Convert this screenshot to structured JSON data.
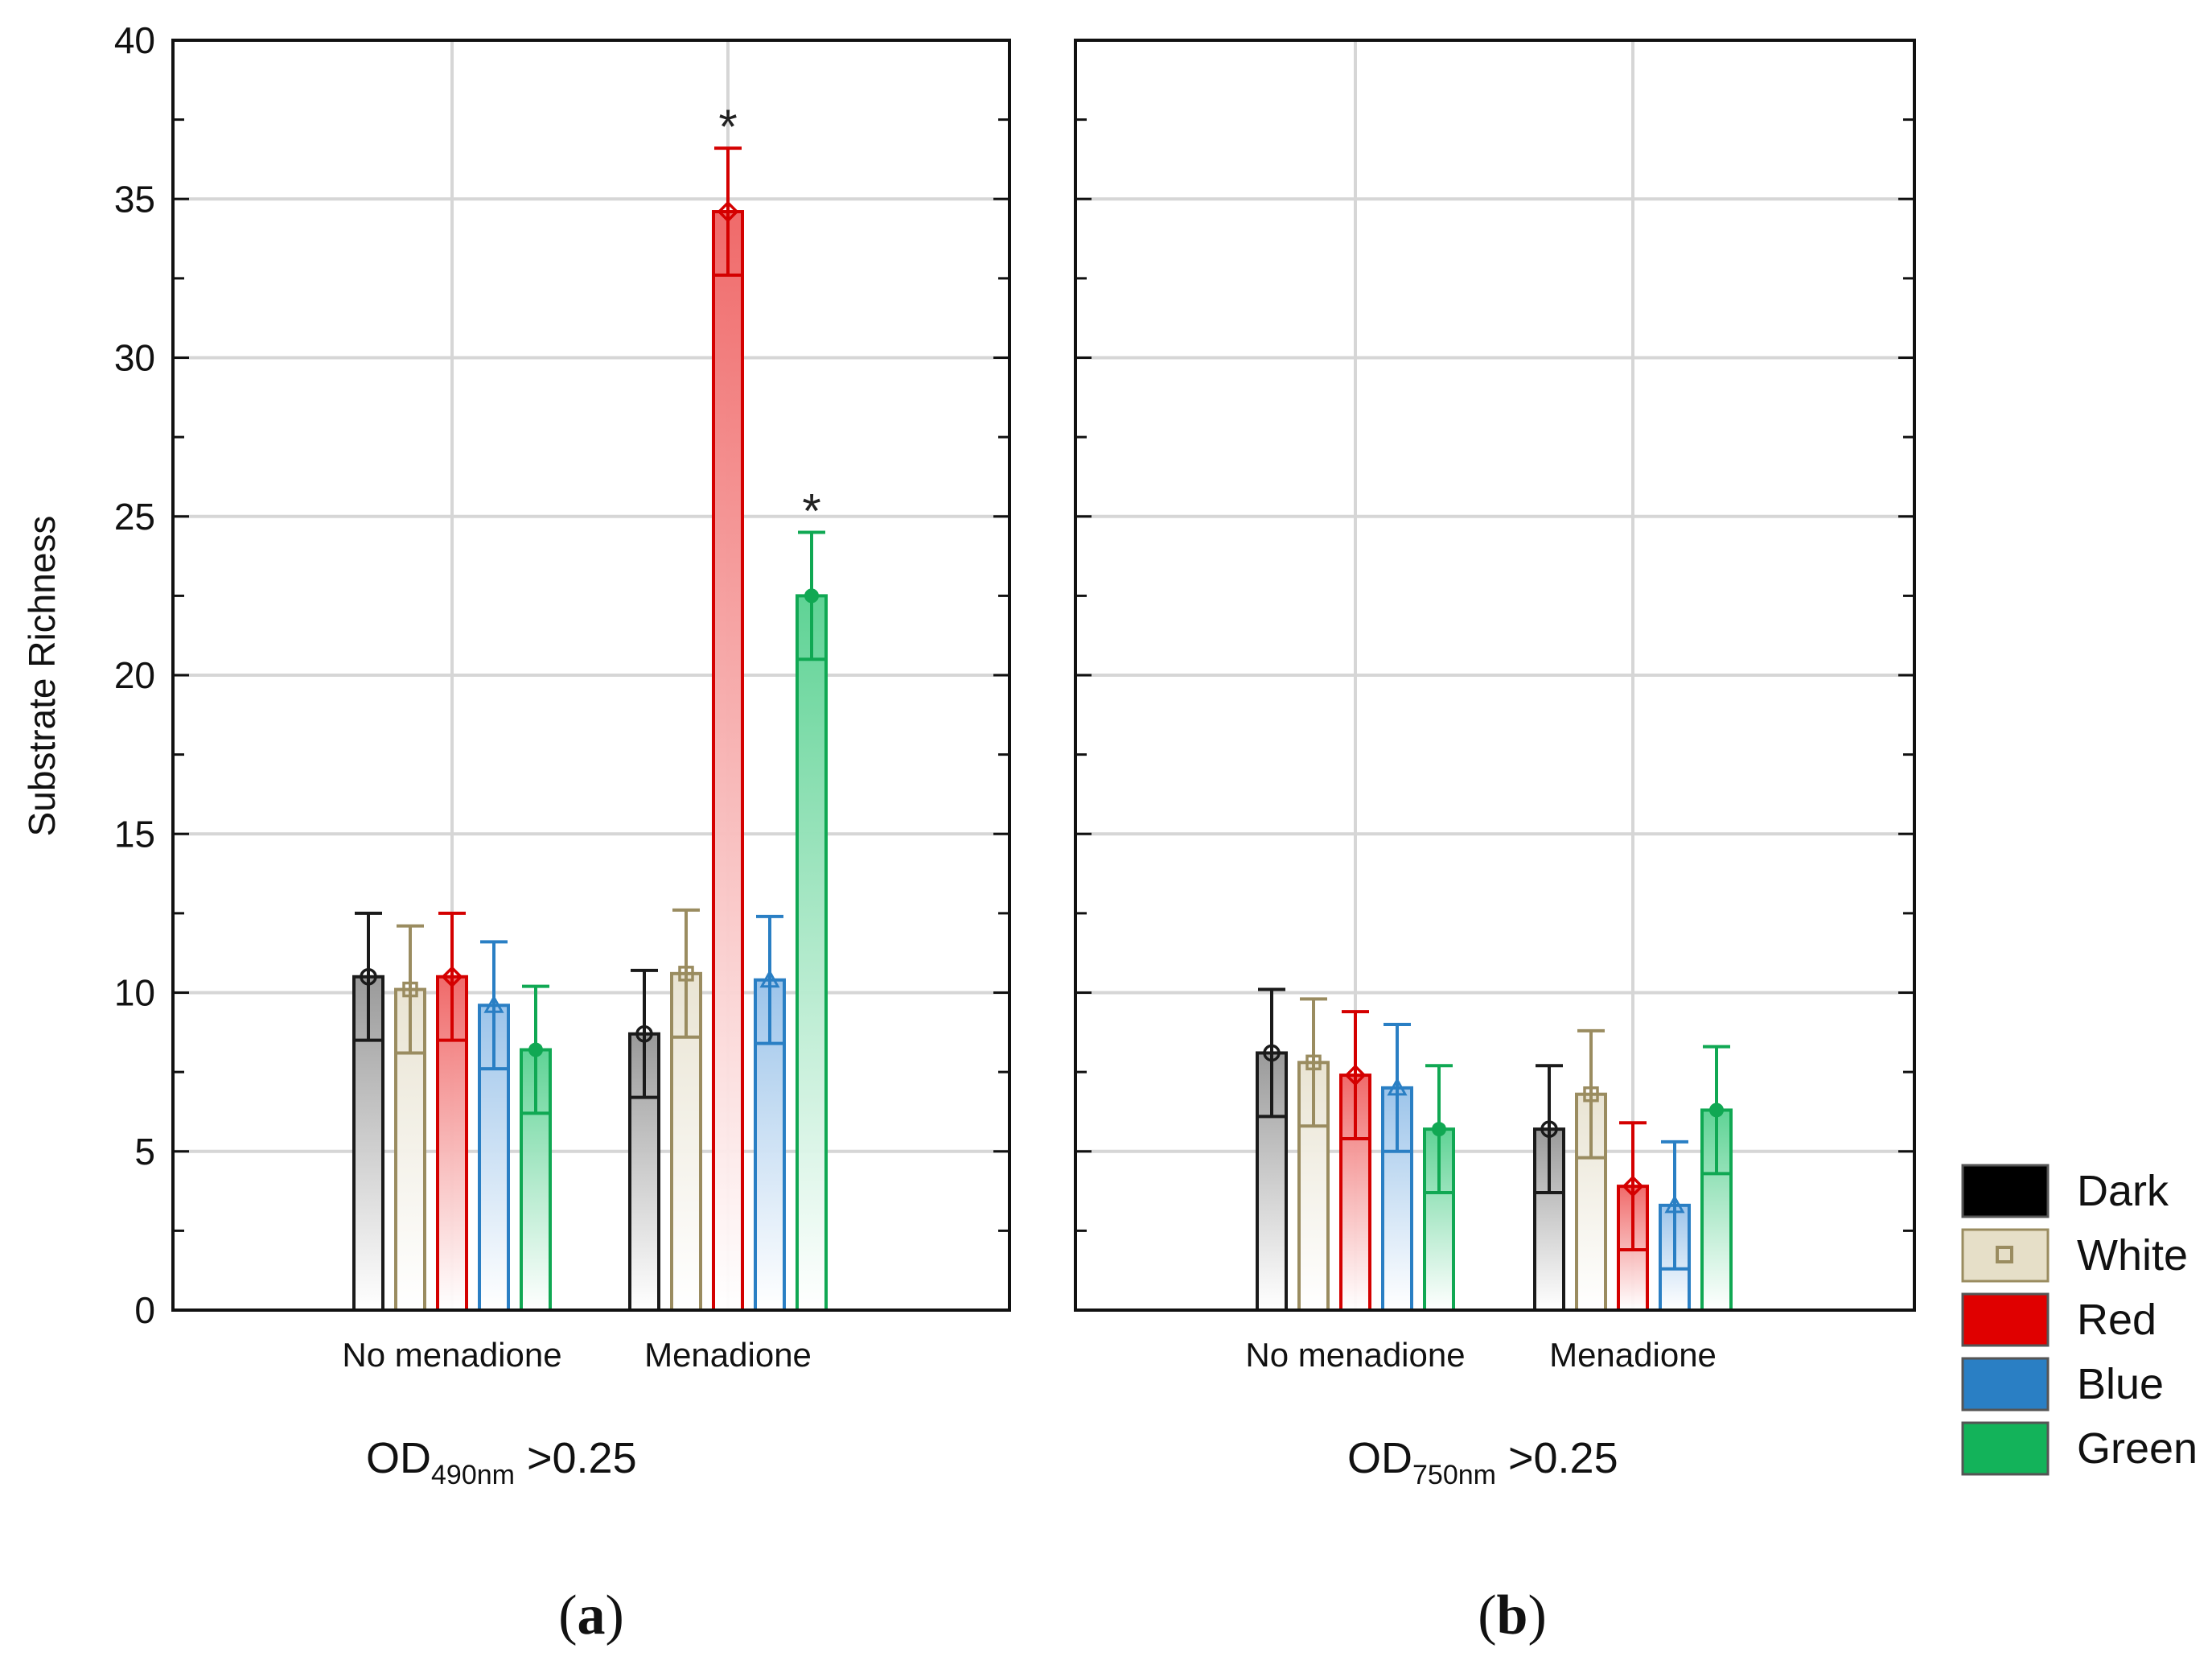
{
  "chart_data": [
    {
      "panel": "(a)",
      "type": "bar",
      "title": "",
      "ylabel": "Substrate Richness",
      "xlabel_main": "OD",
      "xlabel_sub": "490nm",
      "xlabel_rest": " >0.25",
      "ylim": [
        0,
        40
      ],
      "yticks": [
        "0",
        "5",
        "10",
        "15",
        "20",
        "25",
        "30",
        "35",
        "40"
      ],
      "categories": [
        "No menadione",
        "Menadione"
      ],
      "grid": true,
      "series": [
        {
          "name": "Dark",
          "values": [
            10.5,
            8.7
          ],
          "errors": [
            2.0,
            2.0
          ]
        },
        {
          "name": "White",
          "values": [
            10.1,
            10.6
          ],
          "errors": [
            2.0,
            2.0
          ]
        },
        {
          "name": "Red",
          "values": [
            10.5,
            34.6
          ],
          "errors": [
            2.0,
            2.0
          ]
        },
        {
          "name": "Blue",
          "values": [
            9.6,
            10.4
          ],
          "errors": [
            2.0,
            2.0
          ]
        },
        {
          "name": "Green",
          "values": [
            8.2,
            22.5
          ],
          "errors": [
            2.0,
            2.0
          ]
        }
      ],
      "annotations": [
        {
          "text": "*",
          "category": "Menadione",
          "series": "Red"
        },
        {
          "text": "*",
          "category": "Menadione",
          "series": "Green"
        }
      ]
    },
    {
      "panel": "(b)",
      "type": "bar",
      "title": "",
      "ylabel": "",
      "xlabel_main": "OD",
      "xlabel_sub": "750nm",
      "xlabel_rest": " >0.25",
      "ylim": [
        0,
        40
      ],
      "categories": [
        "No menadione",
        "Menadione"
      ],
      "grid": true,
      "series": [
        {
          "name": "Dark",
          "values": [
            8.1,
            5.7
          ],
          "errors": [
            2.0,
            2.0
          ]
        },
        {
          "name": "White",
          "values": [
            7.8,
            6.8
          ],
          "errors": [
            2.0,
            2.0
          ]
        },
        {
          "name": "Red",
          "values": [
            7.4,
            3.9
          ],
          "errors": [
            2.0,
            2.0
          ]
        },
        {
          "name": "Blue",
          "values": [
            7.0,
            3.3
          ],
          "errors": [
            2.0,
            2.0
          ]
        },
        {
          "name": "Green",
          "values": [
            5.7,
            6.3
          ],
          "errors": [
            2.0,
            2.0
          ]
        }
      ],
      "annotations": []
    }
  ],
  "legend": {
    "position": "bottom-right",
    "items": [
      {
        "label": "Dark",
        "color": "#000000",
        "marker": "none"
      },
      {
        "label": "White",
        "color": "#e6dfc8",
        "stroke": "#9a8c60",
        "marker": "square"
      },
      {
        "label": "Red",
        "color": "#e00000",
        "marker": "none"
      },
      {
        "label": "Blue",
        "color": "#2a7fc4",
        "marker": "none"
      },
      {
        "label": "Green",
        "color": "#13b35a",
        "marker": "none"
      }
    ]
  },
  "series_colors": {
    "Dark": {
      "bar": "#9a9a9a",
      "line": "#1a1a1a"
    },
    "White": {
      "bar": "#e9e4d3",
      "line": "#9a8c60"
    },
    "Red": {
      "bar": "#f06a6a",
      "line": "#d40000"
    },
    "Blue": {
      "bar": "#9cc4ea",
      "line": "#2a7fc4"
    },
    "Green": {
      "bar": "#5fd395",
      "line": "#10a853"
    }
  }
}
